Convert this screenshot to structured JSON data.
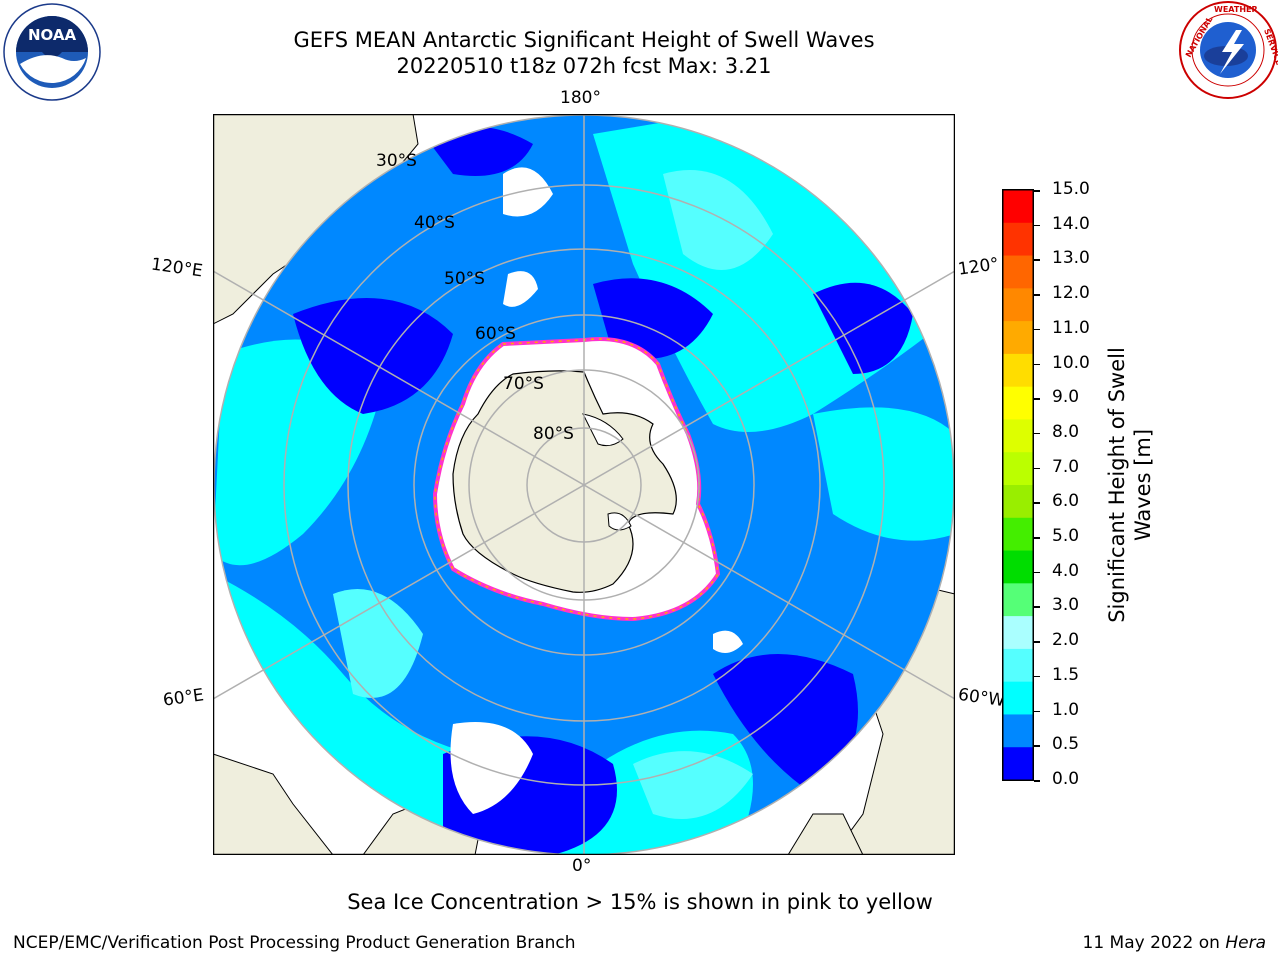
{
  "header": {
    "title_line1": "GEFS MEAN Antarctic Significant Height of Swell Waves",
    "title_line2": "20220510 t18z 072h fcst   Max: 3.21"
  },
  "logos": {
    "noaa": "NOAA",
    "nws": "NATIONAL WEATHER SERVICE"
  },
  "map": {
    "longitude_labels": {
      "top": "180°",
      "bottom": "0°",
      "upper_left": "120°E",
      "lower_left": "60°E",
      "upper_right": "120°",
      "lower_right": "60°W"
    },
    "latitude_labels": [
      "30°S",
      "40°S",
      "50°S",
      "60°S",
      "70°S",
      "80°S"
    ],
    "colors": {
      "land": "#efeedd",
      "ice_sheet": "#ffffff",
      "grid": "#b0b0b0",
      "ice_edge_pink": "#ff33cc",
      "ice_edge_yellow": "#ffaa00"
    }
  },
  "colorbar": {
    "title": "Significant Height of Swell Waves [m]",
    "title_line1": "Significant Height of Swell",
    "title_line2": "Waves [m]",
    "ticks": [
      "15.0",
      "14.0",
      "13.0",
      "12.0",
      "11.0",
      "10.0",
      "9.0",
      "8.0",
      "7.0",
      "6.0",
      "5.0",
      "4.0",
      "3.0",
      "2.0",
      "1.5",
      "1.0",
      "0.5",
      "0.0"
    ],
    "colors_top_to_bottom": [
      "#ff0000",
      "#ff3300",
      "#ff6600",
      "#ff8800",
      "#ffaa00",
      "#ffdd00",
      "#ffff00",
      "#ddff00",
      "#bbff00",
      "#99ee00",
      "#44ee00",
      "#00dd00",
      "#55ff77",
      "#aaffff",
      "#55ffff",
      "#00ffff",
      "#0088ff",
      "#0000ff"
    ]
  },
  "caption": "Sea Ice Concentration > 15% is shown in pink to yellow",
  "footer": {
    "left": "NCEP/EMC/Verification Post Processing Product Generation Branch",
    "date": "11 May 2022 on ",
    "host": "Hera"
  }
}
